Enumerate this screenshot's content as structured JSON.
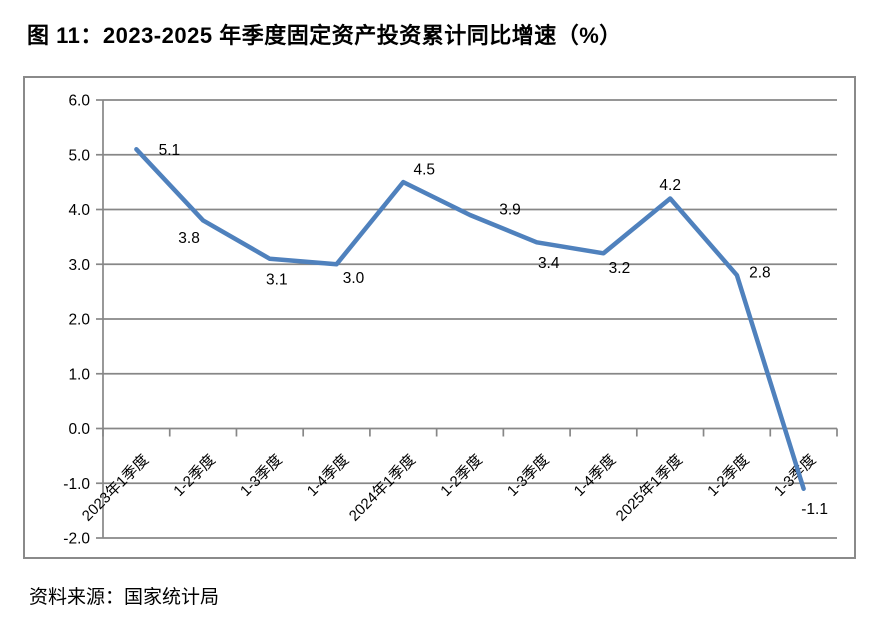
{
  "title": "图 11：2023-2025 年季度固定资产投资累计同比增速（%）",
  "source": "资料来源：国家统计局",
  "colors": {
    "line": "#4F81BD",
    "grid": "#878787",
    "axis": "#878787",
    "border": "#8a8a8a",
    "text": "#000000"
  },
  "chart_data": {
    "type": "line",
    "title": "图 11：2023-2025 年季度固定资产投资累计同比增速（%）",
    "categories": [
      "2023年1季度",
      "1-2季度",
      "1-3季度",
      "1-4季度",
      "2024年1季度",
      "1-2季度",
      "1-3季度",
      "1-4季度",
      "2025年1季度",
      "1-2季度",
      "1-3季度"
    ],
    "values": [
      5.1,
      3.8,
      3.1,
      3.0,
      4.5,
      3.9,
      3.4,
      3.2,
      4.2,
      2.8,
      -1.1
    ],
    "data_labels": [
      "5.1",
      "3.8",
      "3.1",
      "3.0",
      "4.5",
      "3.9",
      "3.4",
      "3.2",
      "4.2",
      "2.8",
      "-1.1"
    ],
    "ylim": [
      -2.0,
      6.0
    ],
    "ytick_step": 1.0,
    "ytick_labels": [
      "6.0",
      "5.0",
      "4.0",
      "3.0",
      "2.0",
      "1.0",
      "0.0",
      "-1.0",
      "-2.0"
    ],
    "grid": true,
    "legend": "none",
    "source": "资料来源：国家统计局"
  }
}
